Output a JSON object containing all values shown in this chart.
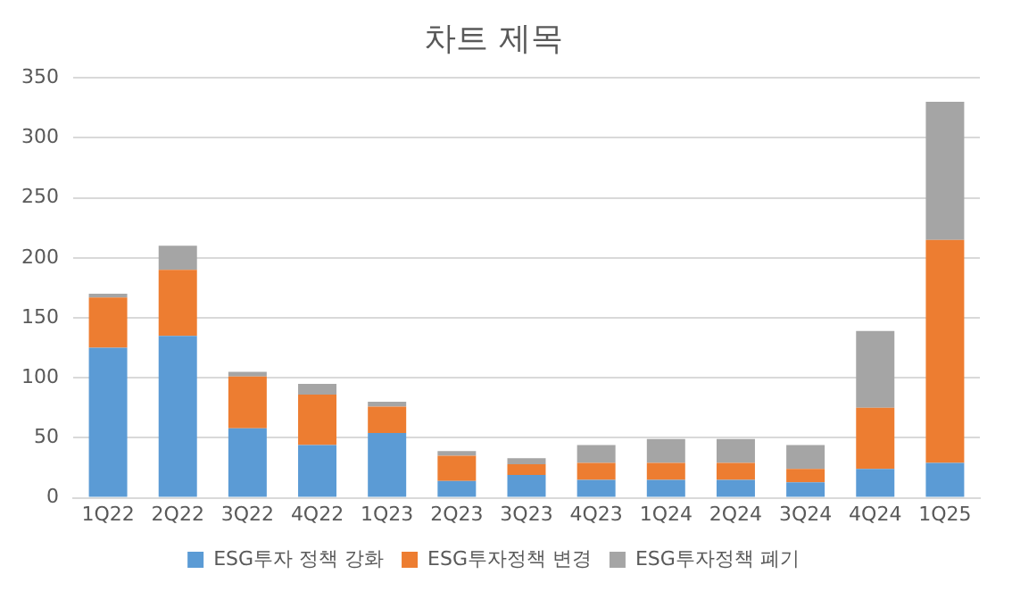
{
  "chart_data": {
    "type": "bar",
    "title": "차트 제목",
    "stacked": true,
    "categories": [
      "1Q22",
      "2Q22",
      "3Q22",
      "4Q22",
      "1Q23",
      "2Q23",
      "3Q23",
      "4Q23",
      "1Q24",
      "2Q24",
      "3Q24",
      "4Q24",
      "1Q25"
    ],
    "series": [
      {
        "name": "ESG투자 정책 강화",
        "color": "#5b9bd5",
        "values": [
          125,
          135,
          58,
          44,
          54,
          14,
          19,
          15,
          15,
          15,
          13,
          24,
          29
        ]
      },
      {
        "name": "ESG투자정책 변경",
        "color": "#ed7d31",
        "values": [
          42,
          55,
          43,
          42,
          22,
          21,
          9,
          14,
          14,
          14,
          11,
          51,
          186
        ]
      },
      {
        "name": "ESG투자정책 폐기",
        "color": "#a5a5a5",
        "values": [
          3,
          20,
          4,
          9,
          4,
          4,
          5,
          15,
          20,
          20,
          20,
          64,
          115
        ]
      }
    ],
    "ylim": [
      0,
      350
    ],
    "yticks": [
      0,
      50,
      100,
      150,
      200,
      250,
      300,
      350
    ],
    "grid": "y",
    "legend": "bottom"
  }
}
